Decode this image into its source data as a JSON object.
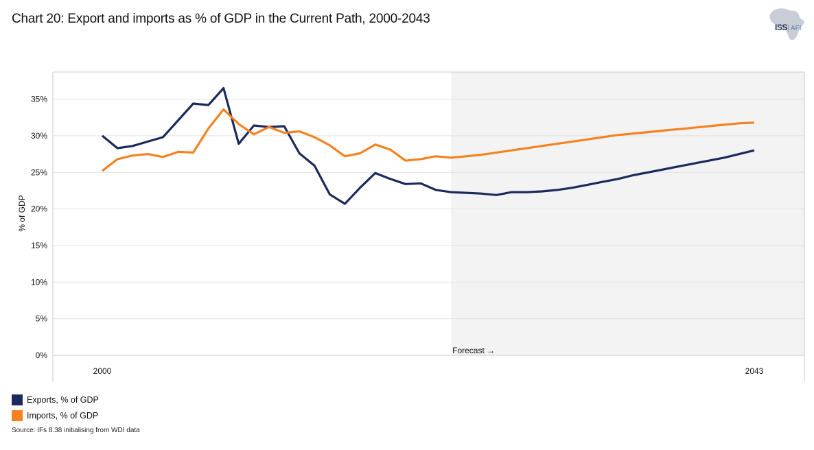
{
  "title": "Chart 20: Export and imports as % of GDP in the Current Path, 2000-2043",
  "logo": {
    "icon": "africa-map-icon",
    "text_main": "ISS",
    "text_sub": "AFI"
  },
  "forecast_label": "Forecast →",
  "source": "Source: IFs 8.38 initialising from WDI data",
  "colors": {
    "exports": "#1b2a5c",
    "imports": "#f5821f",
    "forecast_shading": "#f3f3f3",
    "grid": "#e2e2e2",
    "axis": "#c8c8c8"
  },
  "chart_data": {
    "type": "line",
    "title": "Chart 20: Export and imports as % of GDP in the Current Path, 2000-2043",
    "xlabel": "",
    "ylabel": "% of GDP",
    "xlim": [
      2000,
      2043
    ],
    "ylim": [
      0,
      38
    ],
    "x_tick_labels": [
      "2000",
      "2043"
    ],
    "y_ticks": [
      0,
      5,
      10,
      15,
      20,
      25,
      30,
      35
    ],
    "y_tick_labels": [
      "0%",
      "5%",
      "10%",
      "15%",
      "20%",
      "25%",
      "30%",
      "35%"
    ],
    "grid": true,
    "legend_position": "bottom-left",
    "forecast_start": 2023,
    "x": [
      2000,
      2001,
      2002,
      2003,
      2004,
      2005,
      2006,
      2007,
      2008,
      2009,
      2010,
      2011,
      2012,
      2013,
      2014,
      2015,
      2016,
      2017,
      2018,
      2019,
      2020,
      2021,
      2022,
      2023,
      2024,
      2025,
      2026,
      2027,
      2028,
      2029,
      2030,
      2031,
      2032,
      2033,
      2034,
      2035,
      2036,
      2037,
      2038,
      2039,
      2040,
      2041,
      2042,
      2043
    ],
    "series": [
      {
        "name": "Exports, % of GDP",
        "color": "#1b2a5c",
        "values": [
          30.0,
          28.3,
          28.6,
          29.2,
          29.8,
          32.1,
          34.4,
          34.2,
          36.5,
          28.9,
          31.4,
          31.2,
          31.3,
          27.6,
          25.9,
          22.0,
          20.7,
          22.9,
          24.9,
          24.1,
          23.4,
          23.5,
          22.6,
          22.3,
          22.2,
          22.1,
          21.9,
          22.3,
          22.3,
          22.4,
          22.6,
          22.9,
          23.3,
          23.7,
          24.1,
          24.6,
          25.0,
          25.4,
          25.8,
          26.2,
          26.6,
          27.0,
          27.5,
          28.0
        ]
      },
      {
        "name": "Imports, % of GDP",
        "color": "#f5821f",
        "values": [
          25.2,
          26.8,
          27.3,
          27.5,
          27.1,
          27.8,
          27.7,
          31.0,
          33.6,
          31.6,
          30.2,
          31.2,
          30.4,
          30.6,
          29.8,
          28.7,
          27.2,
          27.6,
          28.8,
          28.1,
          26.6,
          26.8,
          27.2,
          27.0,
          27.2,
          27.4,
          27.7,
          28.0,
          28.3,
          28.6,
          28.9,
          29.2,
          29.5,
          29.8,
          30.1,
          30.3,
          30.5,
          30.7,
          30.9,
          31.1,
          31.3,
          31.5,
          31.7,
          31.8
        ]
      }
    ]
  }
}
